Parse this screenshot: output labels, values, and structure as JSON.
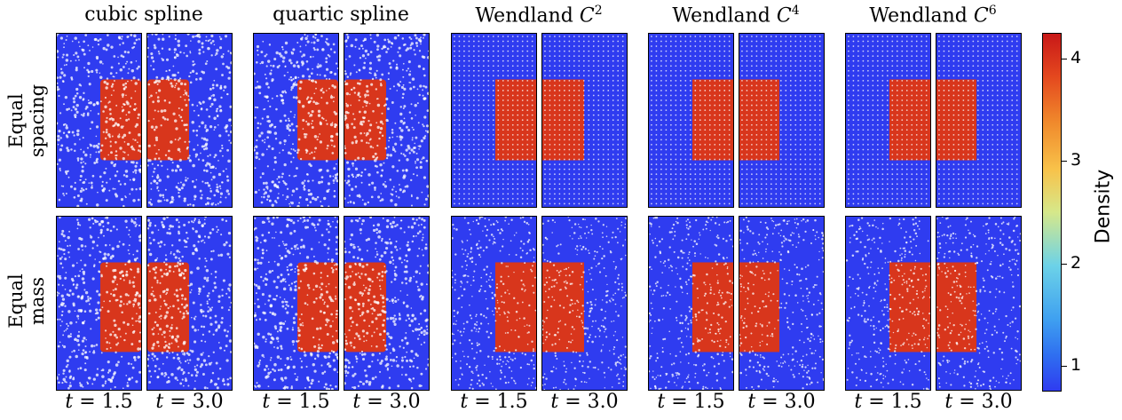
{
  "columns": [
    {
      "label": "cubic spline",
      "sup": ""
    },
    {
      "label": "quartic spline",
      "sup": ""
    },
    {
      "label": "Wendland ",
      "italic": "C",
      "sup": "2"
    },
    {
      "label": "Wendland ",
      "italic": "C",
      "sup": "4"
    },
    {
      "label": "Wendland ",
      "italic": "C",
      "sup": "6"
    }
  ],
  "rows": [
    {
      "line1": "Equal",
      "line2": "spacing"
    },
    {
      "line1": "Equal",
      "line2": "mass"
    }
  ],
  "times": [
    {
      "var": "t",
      "text": " = 1.5"
    },
    {
      "var": "t",
      "text": " = 3.0"
    }
  ],
  "colorbar": {
    "title": "Density",
    "min": 0.75,
    "max": 4.25,
    "ticks": [
      "1",
      "2",
      "3",
      "4"
    ],
    "colors": {
      "low": "#2f3cf0",
      "high": "#d8361c"
    }
  }
}
